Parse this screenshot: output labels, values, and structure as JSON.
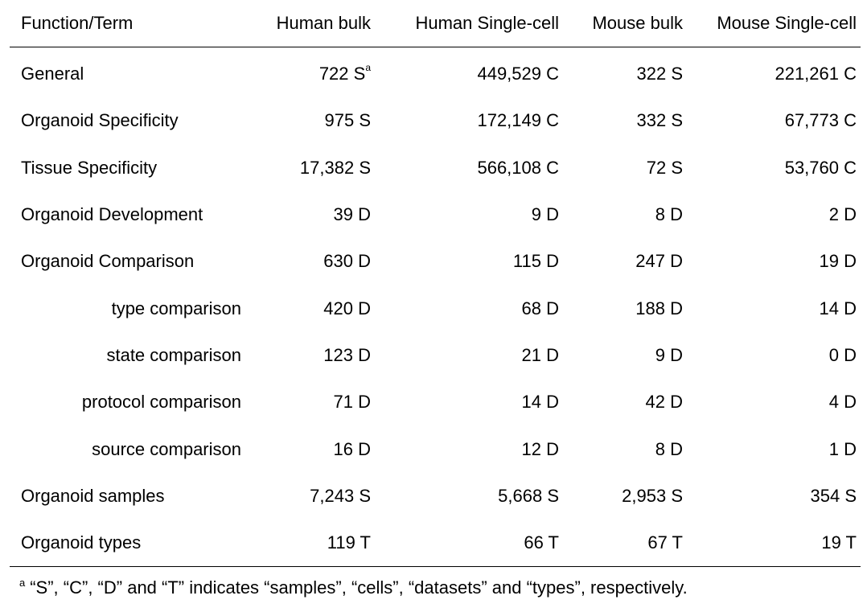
{
  "table": {
    "headers": [
      "Function/Term",
      "Human bulk",
      "Human Single-cell",
      "Mouse bulk",
      "Mouse Single-cell"
    ],
    "rows": [
      {
        "term": "General",
        "sub": false,
        "cells": [
          "722 S",
          "449,529 C",
          "322 S",
          "221,261 C"
        ],
        "sup": "a"
      },
      {
        "term": "Organoid Specificity",
        "sub": false,
        "cells": [
          "975 S",
          "172,149 C",
          "332 S",
          "67,773 C"
        ]
      },
      {
        "term": "Tissue Specificity",
        "sub": false,
        "cells": [
          "17,382 S",
          "566,108 C",
          "72 S",
          "53,760 C"
        ]
      },
      {
        "term": "Organoid Development",
        "sub": false,
        "cells": [
          "39 D",
          "9 D",
          "8 D",
          "2 D"
        ]
      },
      {
        "term": "Organoid Comparison",
        "sub": false,
        "cells": [
          "630 D",
          "115 D",
          "247 D",
          "19 D"
        ]
      },
      {
        "term": "type comparison",
        "sub": true,
        "cells": [
          "420 D",
          "68 D",
          "188 D",
          "14 D"
        ]
      },
      {
        "term": "state comparison",
        "sub": true,
        "cells": [
          "123 D",
          "21 D",
          "9 D",
          "0 D"
        ]
      },
      {
        "term": "protocol comparison",
        "sub": true,
        "cells": [
          "71 D",
          "14 D",
          "42 D",
          "4 D"
        ]
      },
      {
        "term": "source comparison",
        "sub": true,
        "cells": [
          "16 D",
          "12 D",
          "8 D",
          "1 D"
        ]
      },
      {
        "term": "Organoid samples",
        "sub": false,
        "cells": [
          "7,243 S",
          "5,668 S",
          "2,953 S",
          "354 S"
        ]
      },
      {
        "term": "Organoid types",
        "sub": false,
        "cells": [
          "119 T",
          "66 T",
          "67 T",
          "19 T"
        ]
      }
    ]
  },
  "footnote": {
    "marker": "a",
    "text": "“S”, “C”, “D” and “T” indicates “samples”, “cells”, “datasets” and “types”, respectively."
  }
}
